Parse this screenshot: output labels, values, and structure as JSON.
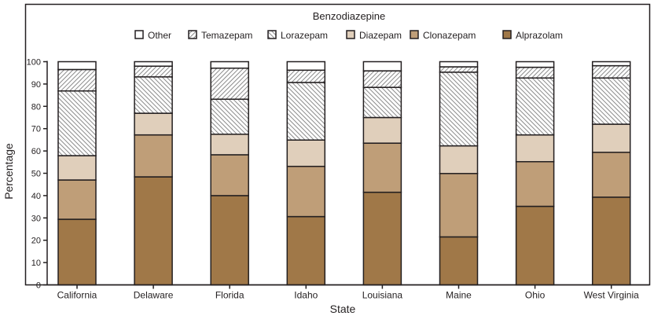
{
  "chart_data": {
    "type": "bar",
    "stacked": true,
    "legend_title": "Benzodiazepine",
    "legend_position": "top",
    "xlabel": "State",
    "ylabel": "Percentage",
    "ylim": [
      0,
      100
    ],
    "yticks": [
      0,
      10,
      20,
      30,
      40,
      50,
      60,
      70,
      80,
      90,
      100
    ],
    "categories": [
      "California",
      "Delaware",
      "Florida",
      "Idaho",
      "Louisiana",
      "Maine",
      "Ohio",
      "West Virginia"
    ],
    "legend_order": [
      "Other",
      "Temazepam",
      "Lorazepam",
      "Diazepam",
      "Clonazepam",
      "Alprazolam"
    ],
    "series": [
      {
        "name": "Alprazolam",
        "color": "#a07848",
        "pattern": "solid",
        "values": [
          29.4,
          48.4,
          40.0,
          30.6,
          41.5,
          21.5,
          35.2,
          39.3
        ]
      },
      {
        "name": "Clonazepam",
        "color": "#bf9e78",
        "pattern": "solid",
        "values": [
          17.6,
          18.8,
          18.3,
          22.5,
          22.0,
          28.4,
          20.0,
          20.1
        ]
      },
      {
        "name": "Diazepam",
        "color": "#e0cfbb",
        "pattern": "solid",
        "values": [
          10.9,
          9.7,
          9.2,
          11.8,
          11.5,
          12.4,
          12.0,
          12.6
        ]
      },
      {
        "name": "Lorazepam",
        "color": "#ffffff",
        "pattern": "hatch-back",
        "values": [
          29.0,
          16.3,
          15.7,
          25.8,
          13.5,
          33.0,
          25.5,
          20.7
        ]
      },
      {
        "name": "Temazepam",
        "color": "#ffffff",
        "pattern": "hatch-forward",
        "values": [
          9.6,
          4.8,
          13.9,
          5.5,
          7.4,
          2.4,
          4.8,
          5.5
        ]
      },
      {
        "name": "Other",
        "color": "#ffffff",
        "pattern": "solid",
        "values": [
          3.5,
          2.0,
          2.9,
          3.8,
          4.1,
          2.3,
          2.5,
          1.8
        ]
      }
    ],
    "grid": false
  }
}
